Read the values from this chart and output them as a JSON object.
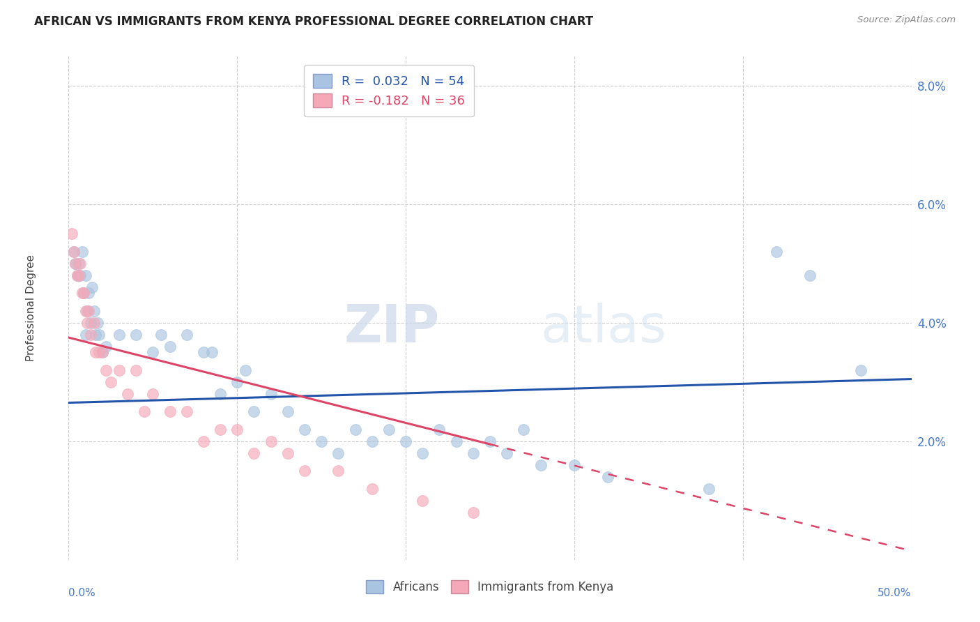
{
  "title": "AFRICAN VS IMMIGRANTS FROM KENYA PROFESSIONAL DEGREE CORRELATION CHART",
  "source": "Source: ZipAtlas.com",
  "ylabel": "Professional Degree",
  "xlim": [
    0,
    50
  ],
  "ylim": [
    0,
    8.5
  ],
  "yticks": [
    2.0,
    4.0,
    6.0,
    8.0
  ],
  "xticks": [
    0,
    10,
    20,
    30,
    40,
    50
  ],
  "legend_entry1": "R =  0.032   N = 54",
  "legend_entry2": "R = -0.182   N = 36",
  "legend_label1": "Africans",
  "legend_label2": "Immigrants from Kenya",
  "blue_scatter_color": "#a8c4e0",
  "pink_scatter_color": "#f4a8b8",
  "blue_line_color": "#2255aa",
  "pink_line_color": "#dd4466",
  "title_fontsize": 12,
  "africans_x": [
    0.3,
    0.4,
    0.5,
    0.6,
    0.7,
    0.8,
    0.9,
    1.0,
    1.0,
    1.1,
    1.2,
    1.3,
    1.4,
    1.5,
    1.6,
    1.7,
    1.8,
    2.0,
    2.2,
    3.0,
    4.0,
    5.0,
    5.5,
    6.0,
    7.0,
    8.0,
    8.5,
    9.0,
    10.0,
    10.5,
    11.0,
    12.0,
    13.0,
    14.0,
    15.0,
    16.0,
    17.0,
    18.0,
    19.0,
    20.0,
    21.0,
    22.0,
    23.0,
    24.0,
    25.0,
    26.0,
    27.0,
    28.0,
    30.0,
    32.0,
    38.0,
    42.0,
    44.0,
    47.0
  ],
  "africans_y": [
    5.2,
    5.0,
    4.8,
    5.0,
    4.8,
    5.2,
    4.5,
    4.8,
    3.8,
    4.2,
    4.5,
    4.0,
    4.6,
    4.2,
    3.8,
    4.0,
    3.8,
    3.5,
    3.6,
    3.8,
    3.8,
    3.5,
    3.8,
    3.6,
    3.8,
    3.5,
    3.5,
    2.8,
    3.0,
    3.2,
    2.5,
    2.8,
    2.5,
    2.2,
    2.0,
    1.8,
    2.2,
    2.0,
    2.2,
    2.0,
    1.8,
    2.2,
    2.0,
    1.8,
    2.0,
    1.8,
    2.2,
    1.6,
    1.6,
    1.4,
    1.2,
    5.2,
    4.8,
    3.2
  ],
  "kenya_x": [
    0.2,
    0.3,
    0.4,
    0.5,
    0.6,
    0.7,
    0.8,
    0.9,
    1.0,
    1.1,
    1.2,
    1.3,
    1.5,
    1.6,
    1.8,
    2.0,
    2.2,
    2.5,
    3.0,
    3.5,
    4.0,
    4.5,
    5.0,
    6.0,
    7.0,
    8.0,
    9.0,
    10.0,
    11.0,
    12.0,
    13.0,
    14.0,
    16.0,
    18.0,
    21.0,
    24.0
  ],
  "kenya_y": [
    5.5,
    5.2,
    5.0,
    4.8,
    4.8,
    5.0,
    4.5,
    4.5,
    4.2,
    4.0,
    4.2,
    3.8,
    4.0,
    3.5,
    3.5,
    3.5,
    3.2,
    3.0,
    3.2,
    2.8,
    3.2,
    2.5,
    2.8,
    2.5,
    2.5,
    2.0,
    2.2,
    2.2,
    1.8,
    2.0,
    1.8,
    1.5,
    1.5,
    1.2,
    1.0,
    0.8
  ],
  "watermark_zip": "ZIP",
  "watermark_atlas": "atlas",
  "background_color": "#ffffff",
  "grid_color": "#cccccc",
  "axis_label_color": "#4477cc",
  "tick_label_color": "#555555"
}
